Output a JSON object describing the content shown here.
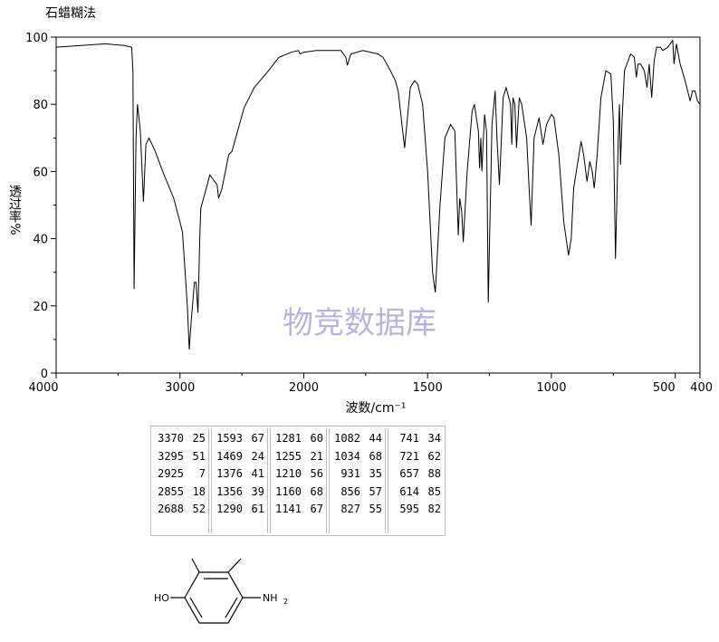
{
  "chart_data": {
    "type": "line",
    "title": "石蜡糊法",
    "xlabel": "波数/cm⁻¹",
    "ylabel": "透过率%",
    "watermark": "物竞数据库",
    "color": "#000000",
    "xlim": [
      4000,
      400
    ],
    "ylim": [
      0,
      100
    ],
    "x_scale": {
      "break": 2000,
      "factor": 2
    },
    "xticks": [
      4000,
      3000,
      2000,
      1500,
      1000,
      500,
      400
    ],
    "xminor_ticks": [
      3500,
      2500,
      1750,
      1250,
      750
    ],
    "yticks": [
      0,
      20,
      40,
      60,
      80,
      100
    ],
    "yminor_ticks": [
      10,
      30,
      50,
      70,
      90
    ],
    "x": [
      4000,
      3800,
      3600,
      3450,
      3390,
      3380,
      3370,
      3355,
      3343,
      3320,
      3295,
      3275,
      3250,
      3200,
      3139,
      3050,
      3000,
      2980,
      2940,
      2925,
      2910,
      2883,
      2870,
      2855,
      2840,
      2832,
      2780,
      2759,
      2700,
      2688,
      2660,
      2606,
      2580,
      2482,
      2400,
      2285,
      2200,
      2100,
      2044,
      2030,
      2000,
      1949,
      1850,
      1830,
      1824,
      1810,
      1762,
      1700,
      1680,
      1650,
      1630,
      1619,
      1593,
      1570,
      1553,
      1540,
      1520,
      1500,
      1480,
      1469,
      1450,
      1430,
      1407,
      1390,
      1376,
      1370,
      1362,
      1356,
      1340,
      1320,
      1311,
      1295,
      1290,
      1285,
      1281,
      1270,
      1262,
      1255,
      1240,
      1227,
      1220,
      1210,
      1195,
      1183,
      1165,
      1160,
      1155,
      1148,
      1141,
      1130,
      1120,
      1100,
      1090,
      1082,
      1070,
      1050,
      1034,
      1020,
      1000,
      990,
      970,
      950,
      931,
      920,
      910,
      880,
      870,
      856,
      845,
      835,
      827,
      815,
      800,
      780,
      760,
      750,
      741,
      730,
      725,
      721,
      715,
      705,
      680,
      665,
      657,
      650,
      640,
      625,
      614,
      605,
      595,
      585,
      575,
      560,
      550,
      530,
      510,
      505,
      495,
      480,
      460,
      440,
      430,
      420,
      410,
      400
    ],
    "values": [
      97,
      97.5,
      98,
      97.5,
      97,
      90,
      25,
      70,
      80,
      72,
      51,
      68,
      70,
      66,
      60,
      52,
      45,
      42,
      20,
      7,
      15,
      27,
      27,
      18,
      40,
      49,
      56,
      59,
      56,
      52,
      55,
      65,
      66,
      79,
      85,
      90,
      94,
      95.5,
      96,
      95,
      95.5,
      96,
      96,
      94,
      91.6,
      95,
      96,
      95,
      94,
      90,
      87,
      84,
      67,
      85,
      87,
      86,
      80,
      60,
      30,
      24,
      50,
      70,
      74,
      72,
      41,
      52,
      48,
      39,
      60,
      78,
      80,
      72,
      61,
      70,
      60,
      77,
      72,
      21,
      74,
      84,
      70,
      56,
      82,
      85,
      80,
      68,
      82,
      80,
      67,
      82,
      80,
      70,
      55,
      44,
      70,
      76,
      68,
      74,
      77,
      76,
      65,
      45,
      35,
      40,
      55,
      69,
      65,
      57,
      63,
      60,
      55,
      65,
      82,
      90,
      89,
      75,
      34,
      70,
      80,
      62,
      75,
      90,
      95,
      94,
      88,
      92,
      92,
      90,
      85,
      92,
      82,
      93,
      97,
      97,
      96,
      97,
      99,
      92,
      98,
      92,
      87,
      81,
      84,
      84,
      81,
      80
    ]
  },
  "peaks": [
    [
      3370,
      25
    ],
    [
      3295,
      51
    ],
    [
      2925,
      7
    ],
    [
      2855,
      18
    ],
    [
      2688,
      52
    ],
    [
      1593,
      67
    ],
    [
      1469,
      24
    ],
    [
      1376,
      41
    ],
    [
      1356,
      39
    ],
    [
      1290,
      61
    ],
    [
      1281,
      60
    ],
    [
      1255,
      21
    ],
    [
      1210,
      56
    ],
    [
      1160,
      68
    ],
    [
      1141,
      67
    ],
    [
      1082,
      44
    ],
    [
      1034,
      68
    ],
    [
      931,
      35
    ],
    [
      856,
      57
    ],
    [
      827,
      55
    ],
    [
      741,
      34
    ],
    [
      721,
      62
    ],
    [
      657,
      88
    ],
    [
      614,
      85
    ],
    [
      595,
      82
    ]
  ],
  "structure": {
    "left": "HO",
    "right": "NH",
    "right_sub": "2"
  }
}
